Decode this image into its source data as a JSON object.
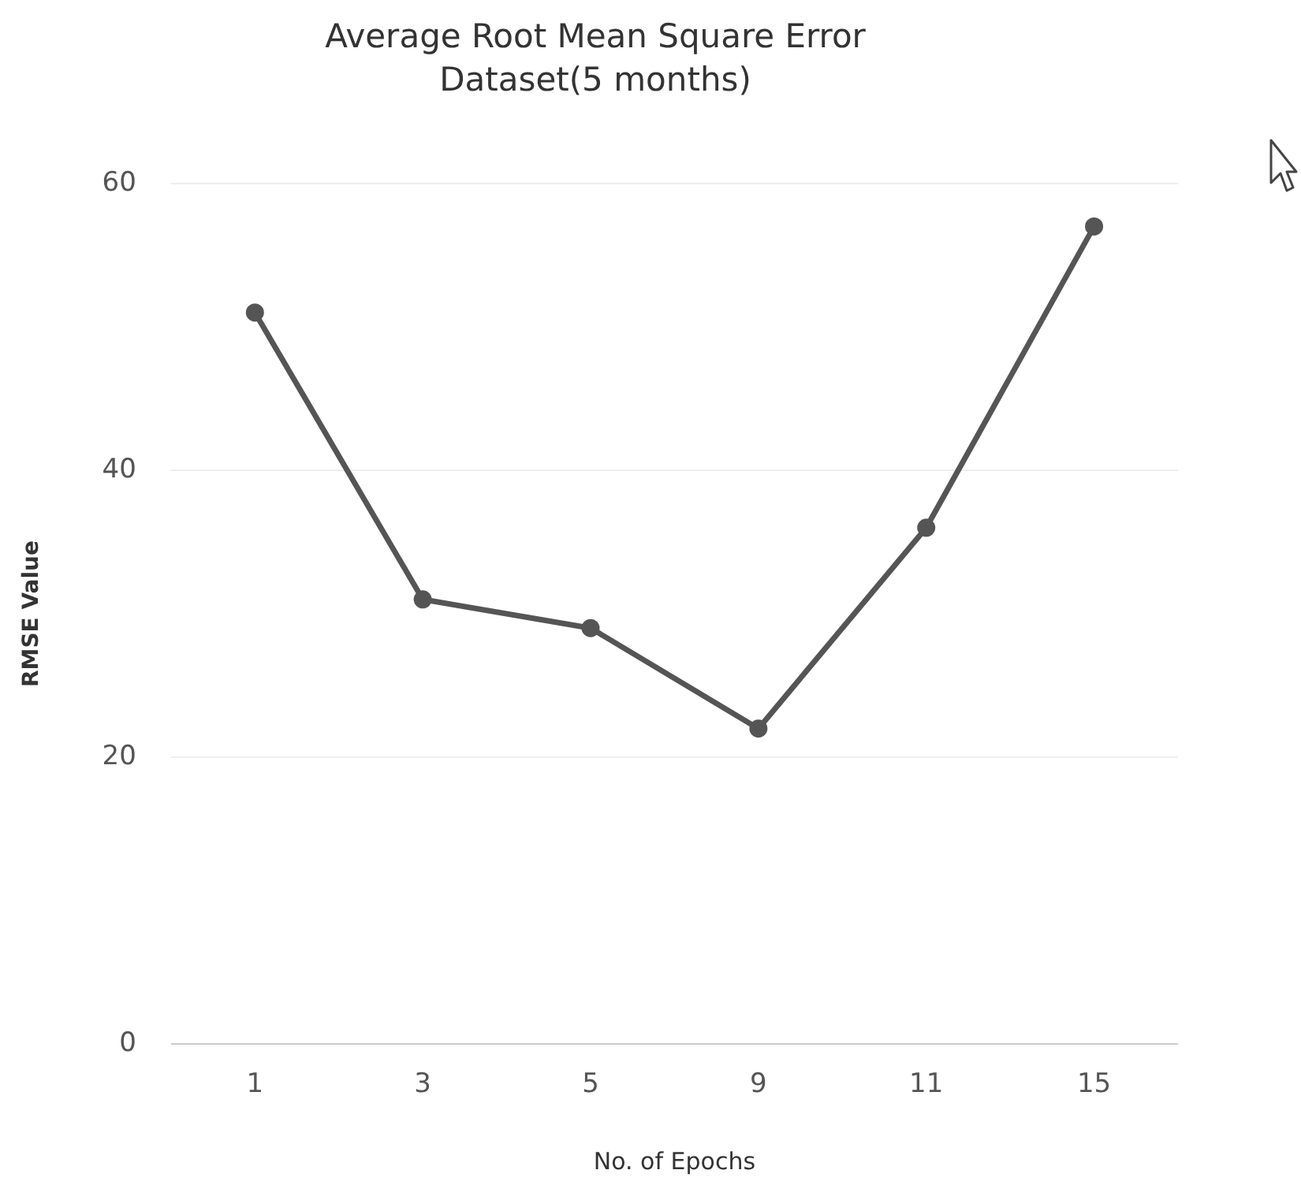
{
  "chart_data": {
    "type": "line",
    "title": "Average Root Mean Square Error",
    "subtitle": "Dataset(5 months)",
    "xlabel": "No. of Epochs",
    "ylabel": "RMSE Value",
    "categories": [
      "1",
      "3",
      "5",
      "9",
      "11",
      "15"
    ],
    "series": [
      {
        "color": "#555555",
        "values": [
          51,
          31,
          29,
          22,
          36,
          57
        ]
      }
    ],
    "ylim": [
      0,
      60
    ],
    "yticks": [
      0,
      20,
      40,
      60
    ],
    "grid": "y",
    "legend": false,
    "marker": "circle",
    "line_style": "solid"
  }
}
